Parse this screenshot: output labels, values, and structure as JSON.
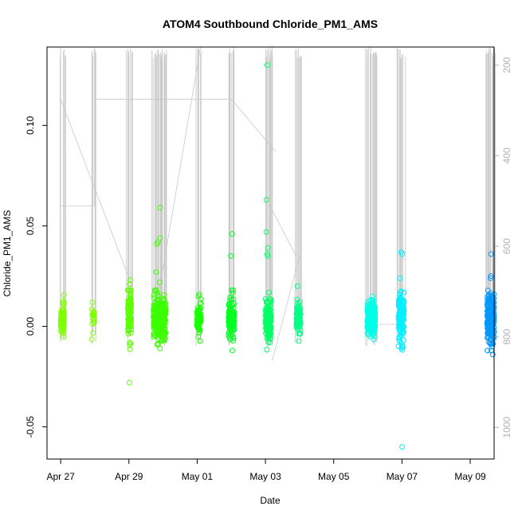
{
  "chart_data": {
    "type": "scatter",
    "title": "ATOM4 Southbound Chloride_PM1_AMS",
    "xlabel": "Date",
    "ylabel": "Chloride_PM1_AMS",
    "xlim": [
      -0.4,
      12.7
    ],
    "ylim": [
      -0.066,
      0.139
    ],
    "x_unit": "days since Apr 27",
    "x_ticks": [
      {
        "value": 0,
        "label": "Apr 27"
      },
      {
        "value": 2,
        "label": "Apr 29"
      },
      {
        "value": 4,
        "label": "May 01"
      },
      {
        "value": 6,
        "label": "May 03"
      },
      {
        "value": 8,
        "label": "May 05"
      },
      {
        "value": 10,
        "label": "May 07"
      },
      {
        "value": 12,
        "label": "May 09"
      }
    ],
    "y_ticks": [
      {
        "value": -0.05,
        "label": "-0.05"
      },
      {
        "value": 0.0,
        "label": "0.00"
      },
      {
        "value": 0.05,
        "label": "0.05"
      },
      {
        "value": 0.1,
        "label": "0.10"
      }
    ],
    "secondary_axis": {
      "label": "",
      "inverted": true,
      "ylim": [
        160,
        1070
      ],
      "ticks": [
        {
          "value": 200,
          "label": "200"
        },
        {
          "value": 400,
          "label": "400"
        },
        {
          "value": 600,
          "label": "600"
        },
        {
          "value": 800,
          "label": "800"
        },
        {
          "value": 1000,
          "label": "1000"
        }
      ],
      "color": "#b3b3b3"
    },
    "clusters": [
      {
        "x": 0.05,
        "spread": 0.05,
        "n": 70,
        "mean": 0.004,
        "sd": 0.004,
        "color": "#7fff00",
        "outliers": []
      },
      {
        "x": 0.95,
        "spread": 0.04,
        "n": 18,
        "mean": 0.004,
        "sd": 0.003,
        "color": "#7fff00",
        "outliers": []
      },
      {
        "x": 2.02,
        "spread": 0.05,
        "n": 90,
        "mean": 0.006,
        "sd": 0.006,
        "color": "#5dff00",
        "outliers": [
          0.023,
          0.021,
          -0.008,
          -0.028
        ]
      },
      {
        "x": 2.9,
        "spread": 0.18,
        "n": 260,
        "mean": 0.004,
        "sd": 0.005,
        "color": "#3cff00",
        "outliers": [
          0.059,
          0.044,
          0.042,
          0.041,
          0.027,
          0.022,
          -0.009
        ]
      },
      {
        "x": 4.05,
        "spread": 0.06,
        "n": 70,
        "mean": 0.004,
        "sd": 0.004,
        "color": "#19ff00",
        "outliers": [
          0.016,
          0.015
        ]
      },
      {
        "x": 5.0,
        "spread": 0.08,
        "n": 130,
        "mean": 0.004,
        "sd": 0.005,
        "color": "#00ff20",
        "outliers": [
          0.046,
          0.035,
          0.018
        ]
      },
      {
        "x": 6.08,
        "spread": 0.08,
        "n": 150,
        "mean": 0.003,
        "sd": 0.005,
        "color": "#00ff66",
        "outliers": [
          0.13,
          0.063,
          0.047,
          0.039,
          0.036,
          0.035,
          -0.008
        ]
      },
      {
        "x": 6.97,
        "spread": 0.06,
        "n": 90,
        "mean": 0.004,
        "sd": 0.004,
        "color": "#00ff88",
        "outliers": [
          0.02
        ]
      },
      {
        "x": 9.1,
        "spread": 0.12,
        "n": 230,
        "mean": 0.004,
        "sd": 0.004,
        "color": "#00ffe6",
        "outliers": [
          0.015,
          0.012,
          -0.005
        ]
      },
      {
        "x": 9.98,
        "spread": 0.08,
        "n": 120,
        "mean": 0.004,
        "sd": 0.006,
        "color": "#00f0ff",
        "outliers": [
          0.037,
          0.036,
          0.024,
          -0.01,
          -0.011,
          -0.06
        ]
      },
      {
        "x": 12.6,
        "spread": 0.1,
        "n": 230,
        "mean": 0.004,
        "sd": 0.006,
        "color": "#0099ff",
        "outliers": [
          0.036,
          0.025,
          0.024,
          -0.012,
          -0.014
        ]
      }
    ],
    "altitude_profile_note": "grey vertical lines: flight altitude on inverted right axis (meters)"
  }
}
